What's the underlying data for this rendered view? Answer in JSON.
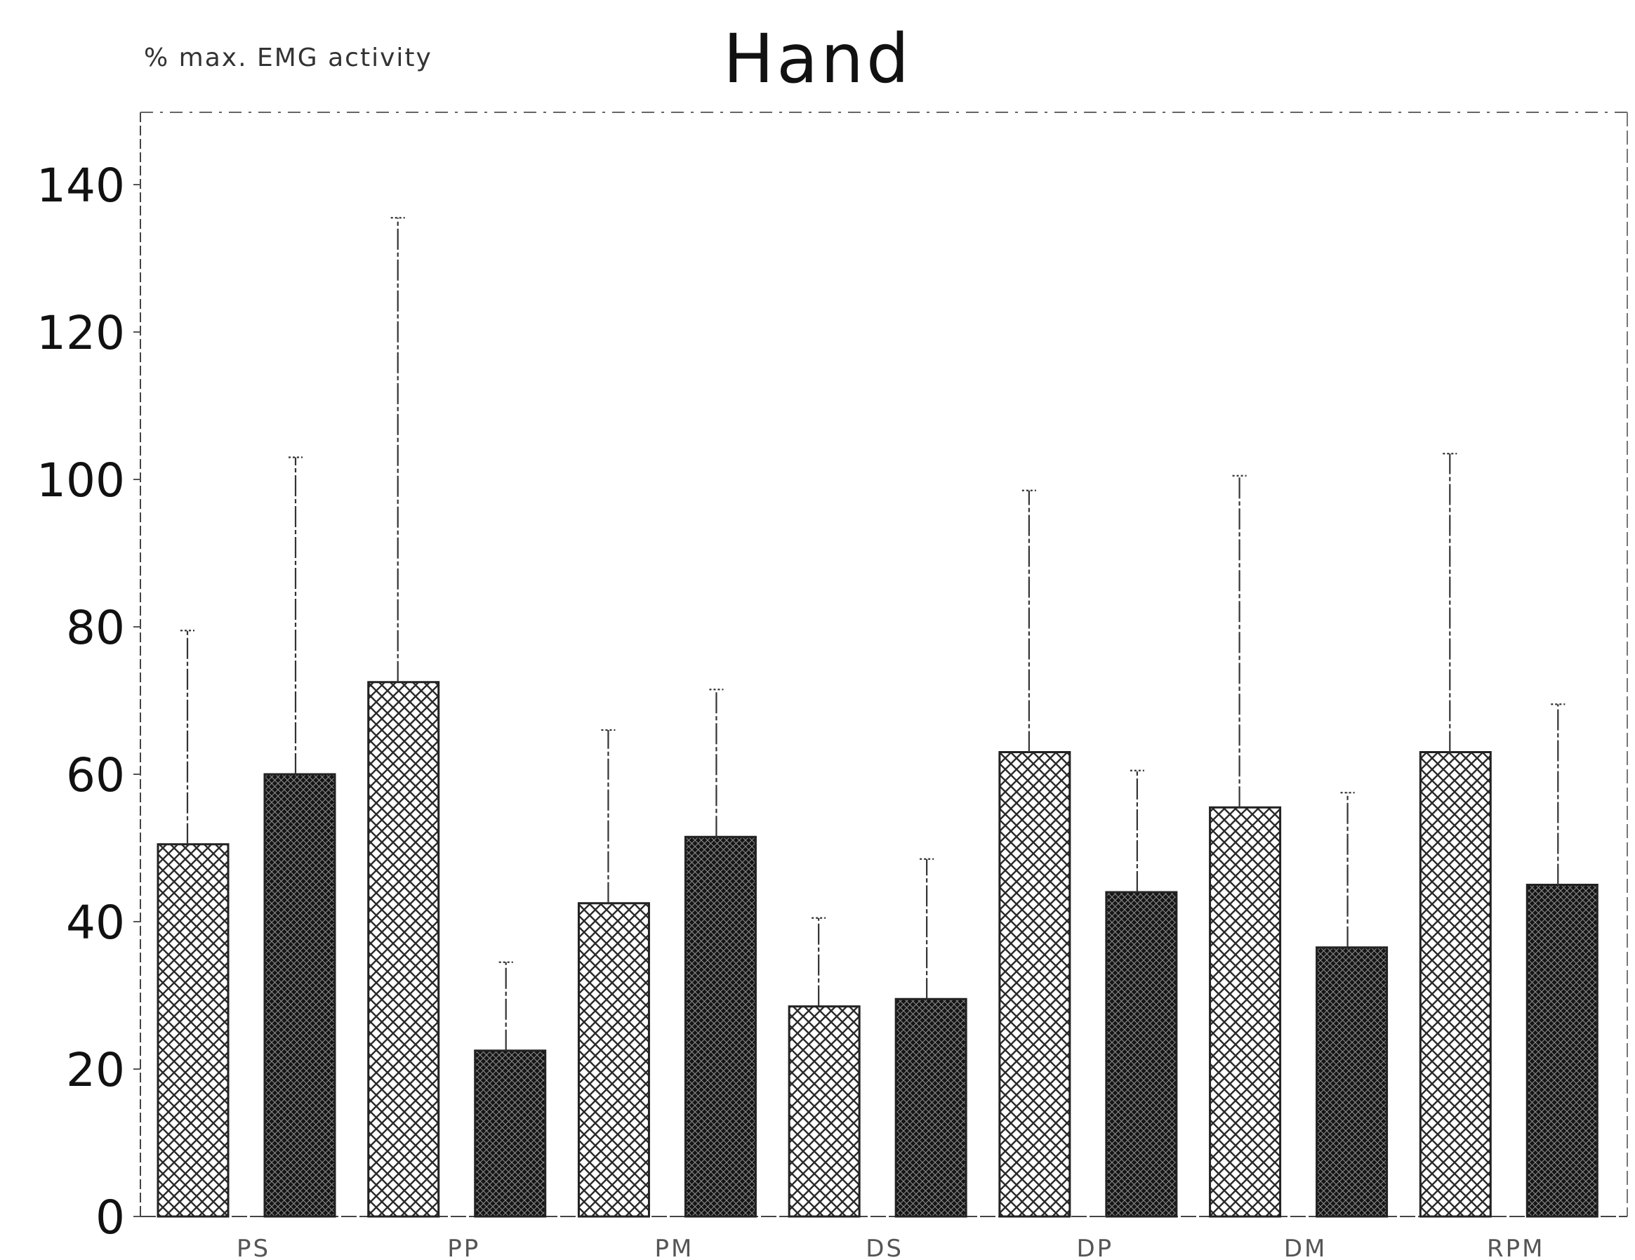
{
  "chart_data": {
    "type": "bar",
    "title": "Hand",
    "ylabel": "% max. EMG activity",
    "xlabel": "",
    "ylim": [
      0,
      150
    ],
    "yticks": [
      0,
      20,
      40,
      60,
      80,
      100,
      120,
      140
    ],
    "categories": [
      "PS",
      "PP",
      "PM",
      "DS",
      "DP",
      "DM",
      "RPM"
    ],
    "grid": false,
    "legend": "none",
    "series": [
      {
        "pattern": "light-crosshatch",
        "color": "#ffffff",
        "values": [
          50.5,
          72.5,
          42.5,
          28.5,
          63,
          55.5,
          63
        ],
        "error": [
          29,
          63,
          23.5,
          12,
          35.5,
          45,
          40.5
        ]
      },
      {
        "pattern": "dark-crosshatch",
        "color": "#1c1c1c",
        "values": [
          60,
          22.5,
          51.5,
          29.5,
          44,
          36.5,
          45
        ],
        "error": [
          43,
          12,
          20,
          19,
          16.5,
          21,
          24.5
        ]
      }
    ]
  }
}
